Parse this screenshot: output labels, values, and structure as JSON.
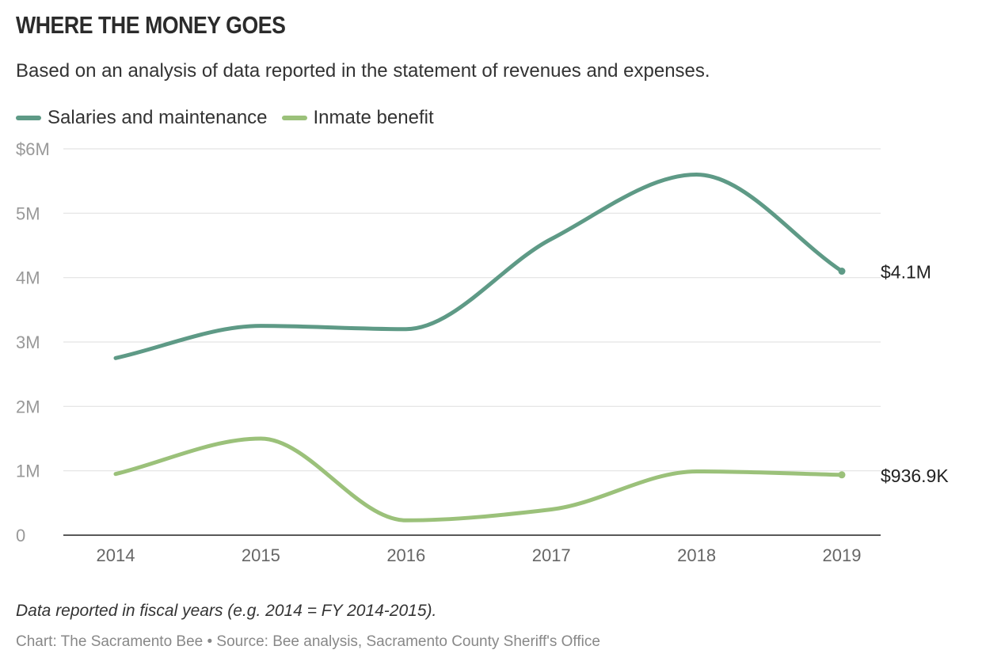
{
  "header": {
    "title": "WHERE THE MONEY GOES",
    "subtitle": "Based on an analysis of data reported in the statement of revenues and expenses."
  },
  "footer": {
    "note": "Data reported in fiscal years (e.g. 2014 = FY 2014-2015).",
    "source": "Chart: The Sacramento Bee • Source: Bee analysis, Sacramento County Sheriff's Office"
  },
  "chart_data": {
    "type": "line",
    "title": "WHERE THE MONEY GOES",
    "subtitle": "Based on an analysis of data reported in the statement of revenues and expenses.",
    "x": [
      "2014",
      "2015",
      "2016",
      "2017",
      "2018",
      "2019"
    ],
    "y_ticks": [
      {
        "value": 0,
        "label": "0"
      },
      {
        "value": 1000000,
        "label": "1M"
      },
      {
        "value": 2000000,
        "label": "2M"
      },
      {
        "value": 3000000,
        "label": "3M"
      },
      {
        "value": 4000000,
        "label": "4M"
      },
      {
        "value": 5000000,
        "label": "5M"
      },
      {
        "value": 6000000,
        "label": "$6M"
      }
    ],
    "ylim": [
      0,
      6000000
    ],
    "grid": true,
    "legend_position": "top-left",
    "series": [
      {
        "name": "Salaries and maintenance",
        "color": "#5e9a86",
        "values": [
          2750000,
          3250000,
          3200000,
          4600000,
          5600000,
          4100000
        ],
        "end_label": "$4.1M"
      },
      {
        "name": "Inmate benefit",
        "color": "#9bc17a",
        "values": [
          950000,
          1500000,
          230000,
          400000,
          990000,
          936900
        ],
        "end_label": "$936.9K"
      }
    ]
  }
}
